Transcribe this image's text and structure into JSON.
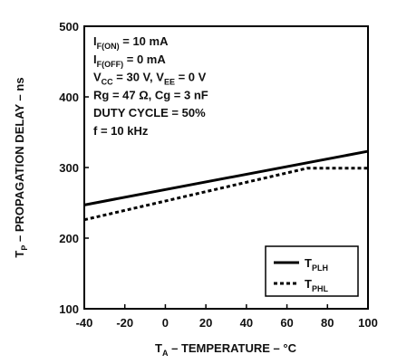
{
  "chart_data": {
    "type": "line",
    "xlabel": {
      "main": "T",
      "sub": "A",
      "rest": " – TEMPERATURE – °C"
    },
    "ylabel": {
      "main": "T",
      "sub": "P",
      "rest": " – PROPAGATION DELAY – ns"
    },
    "xlim": [
      -40,
      100
    ],
    "ylim": [
      100,
      500
    ],
    "xticks": [
      -40,
      -20,
      0,
      20,
      40,
      60,
      80,
      100
    ],
    "yticks": [
      100,
      200,
      300,
      400,
      500
    ],
    "grid": false,
    "legend_position": "bottom-right",
    "conditions": [
      {
        "a": "I",
        "sub": "F(ON)",
        "b": " = 10 mA"
      },
      {
        "a": "I",
        "sub": "F(OFF)",
        "b": " = 0 mA"
      },
      {
        "a": "V",
        "sub": "CC",
        "b": " = 30 V, V",
        "sub2": "EE",
        "c": " = 0 V"
      },
      {
        "a": "Rg = 47 Ω, Cg = 3 nF"
      },
      {
        "a": "DUTY CYCLE = 50%"
      },
      {
        "a": "f = 10 kHz"
      }
    ],
    "series": [
      {
        "name": "T",
        "name_sub": "PLH",
        "style": "solid",
        "x": [
          -40,
          100
        ],
        "y": [
          247,
          323
        ]
      },
      {
        "name": "T",
        "name_sub": "PHL",
        "style": "dashed",
        "x": [
          -40,
          70,
          100
        ],
        "y": [
          226,
          299,
          299
        ]
      }
    ]
  }
}
